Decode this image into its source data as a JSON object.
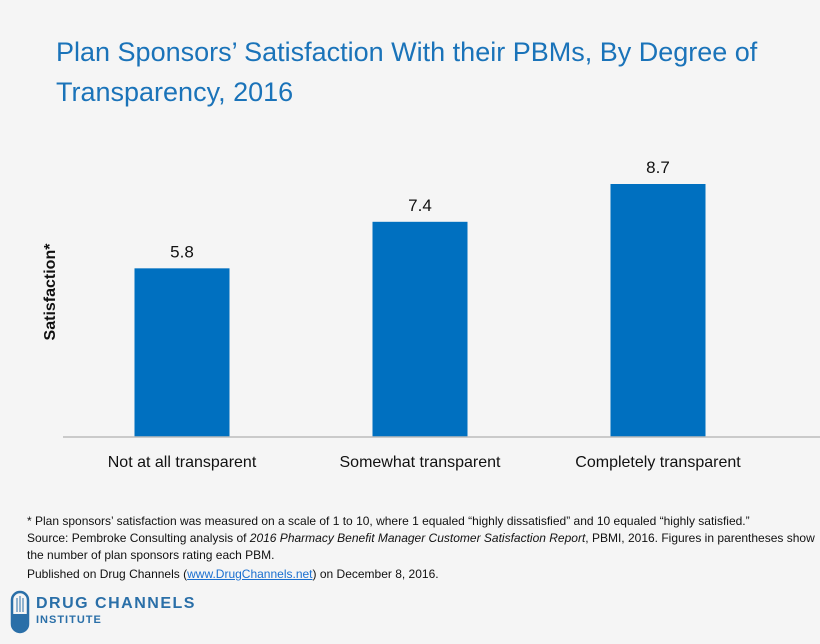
{
  "chart_data": {
    "type": "bar",
    "title": "Plan Sponsors’ Satisfaction With their PBMs, By Degree of Transparency, 2016",
    "categories": [
      "Not at all transparent",
      "Somewhat transparent",
      "Completely transparent"
    ],
    "values": [
      5.8,
      7.4,
      8.7
    ],
    "data_labels": [
      "5.8",
      "7.4",
      "8.7"
    ],
    "xlabel": "",
    "ylabel": "Satisfaction*",
    "ylim": [
      0,
      10
    ],
    "grid": false,
    "bar_color": "#0070c0",
    "title_color": "#1a73b9"
  },
  "footnote": {
    "line1": "* Plan sponsors’ satisfaction was measured on a scale of 1 to 10, where 1 equaled “highly dissatisfied” and 10 equaled “highly satisfied.”",
    "source_prefix": "Source: Pembroke Consulting analysis of ",
    "source_italic": "2016 Pharmacy Benefit Manager Customer Satisfaction Report",
    "source_suffix": ", PBMI, 2016. Figures in parentheses show the number of plan sponsors rating each PBM.",
    "published_prefix": "Published on Drug Channels (",
    "published_link": "www.DrugChannels.net",
    "published_suffix": ") on December 8, 2016."
  },
  "logo": {
    "line1": "DRUG CHANNELS",
    "line2": "INSTITUTE"
  }
}
